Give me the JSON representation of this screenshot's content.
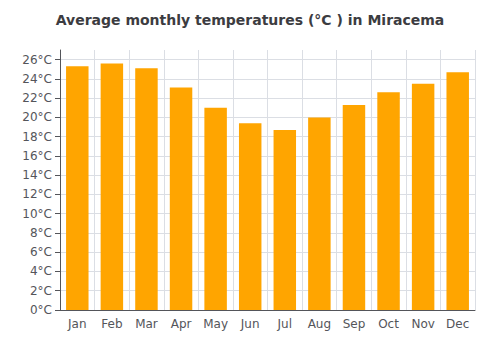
{
  "chart_data": {
    "type": "bar",
    "title": "Average monthly temperatures (°C ) in Miracema",
    "categories": [
      "Jan",
      "Feb",
      "Mar",
      "Apr",
      "May",
      "Jun",
      "Jul",
      "Aug",
      "Sep",
      "Oct",
      "Nov",
      "Dec"
    ],
    "values": [
      25.3,
      25.6,
      25.1,
      23.1,
      21.0,
      19.4,
      18.7,
      20.0,
      21.3,
      22.6,
      23.5,
      24.7
    ],
    "color": "#FFA500",
    "ylim": [
      0,
      27
    ],
    "yticks": [
      {
        "value": 0,
        "label": "0°C"
      },
      {
        "value": 2,
        "label": "2°C"
      },
      {
        "value": 4,
        "label": "4°C"
      },
      {
        "value": 6,
        "label": "6°C"
      },
      {
        "value": 8,
        "label": "8°C"
      },
      {
        "value": 10,
        "label": "10°C"
      },
      {
        "value": 12,
        "label": "12°C"
      },
      {
        "value": 14,
        "label": "14°C"
      },
      {
        "value": 16,
        "label": "16°C"
      },
      {
        "value": 18,
        "label": "18°C"
      },
      {
        "value": 20,
        "label": "20°C"
      },
      {
        "value": 22,
        "label": "22°C"
      },
      {
        "value": 24,
        "label": "24°C"
      },
      {
        "value": 26,
        "label": "26°C"
      }
    ],
    "grid": true
  }
}
